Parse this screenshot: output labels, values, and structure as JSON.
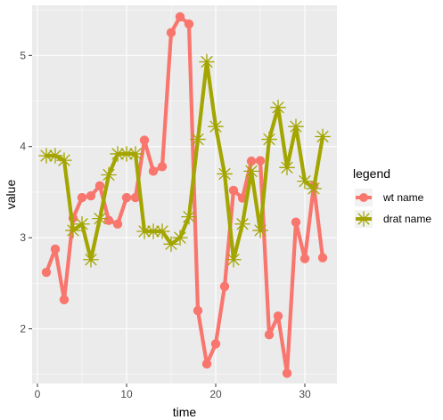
{
  "chart_data": {
    "type": "line",
    "xlabel": "time",
    "ylabel": "value",
    "xlim": [
      -0.6,
      33.6
    ],
    "ylim": [
      1.4,
      5.55
    ],
    "x_ticks": [
      0,
      10,
      20,
      30
    ],
    "y_ticks": [
      2,
      3,
      4,
      5
    ],
    "grid": true,
    "legend": {
      "title": "legend",
      "position": "right"
    },
    "colors": {
      "panel": "#ebebeb",
      "grid": "#ffffff"
    },
    "series": [
      {
        "name": "wt name",
        "color": "#f8766d",
        "marker": "circle",
        "x": [
          1,
          2,
          3,
          4,
          5,
          6,
          7,
          8,
          9,
          10,
          11,
          12,
          13,
          14,
          15,
          16,
          17,
          18,
          19,
          20,
          21,
          22,
          23,
          24,
          25,
          26,
          27,
          28,
          29,
          30,
          31,
          32
        ],
        "values": [
          2.62,
          2.875,
          2.32,
          3.215,
          3.44,
          3.46,
          3.57,
          3.19,
          3.15,
          3.44,
          3.44,
          4.07,
          3.73,
          3.78,
          5.25,
          5.424,
          5.345,
          2.2,
          1.615,
          1.835,
          2.465,
          3.52,
          3.435,
          3.84,
          3.845,
          1.935,
          2.14,
          1.513,
          3.17,
          2.77,
          3.57,
          2.78
        ]
      },
      {
        "name": "drat name",
        "color": "#a3a500",
        "marker": "asterisk",
        "x": [
          1,
          2,
          3,
          4,
          5,
          6,
          7,
          8,
          9,
          10,
          11,
          12,
          13,
          14,
          15,
          16,
          17,
          18,
          19,
          20,
          21,
          22,
          23,
          24,
          25,
          26,
          27,
          28,
          29,
          30,
          31,
          32
        ],
        "values": [
          3.9,
          3.9,
          3.85,
          3.08,
          3.15,
          2.76,
          3.21,
          3.69,
          3.92,
          3.92,
          3.92,
          3.07,
          3.07,
          3.07,
          2.93,
          3.0,
          3.23,
          4.08,
          4.93,
          4.22,
          3.7,
          2.76,
          3.15,
          3.73,
          3.08,
          4.08,
          4.43,
          3.77,
          4.22,
          3.62,
          3.54,
          4.11
        ]
      }
    ]
  }
}
